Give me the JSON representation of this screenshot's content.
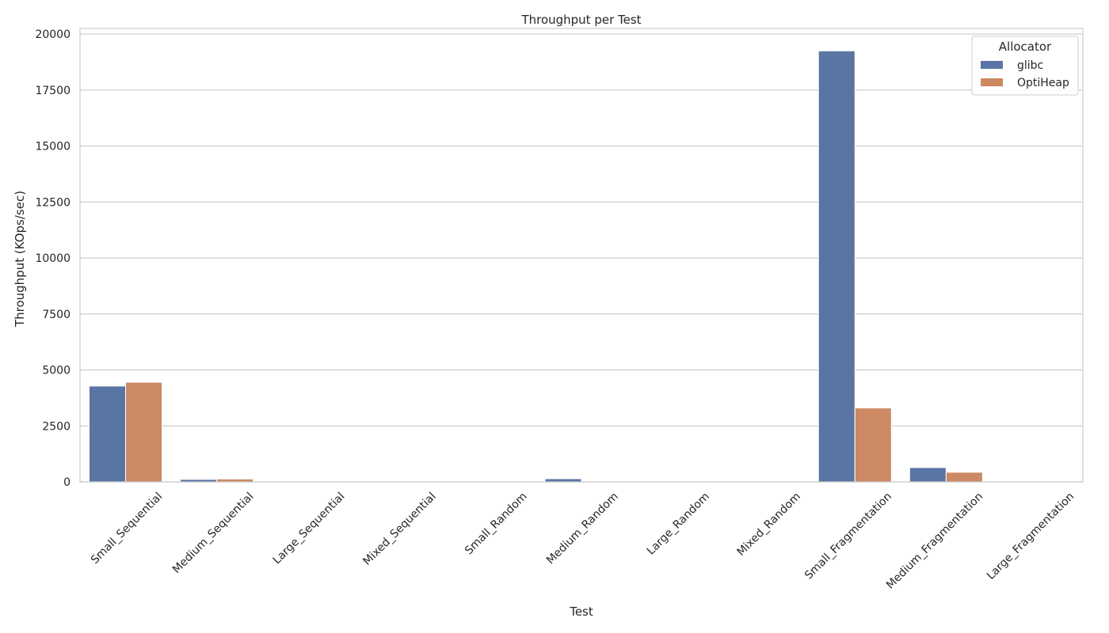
{
  "chart_data": {
    "type": "bar",
    "title": "Throughput per Test",
    "xlabel": "Test",
    "ylabel": "Throughput (KOps/sec)",
    "ylim": [
      0,
      20250
    ],
    "yticks": [
      0,
      2500,
      5000,
      7500,
      10000,
      12500,
      15000,
      17500,
      20000
    ],
    "grid": "horizontal",
    "legend_position": "top-right",
    "legend_title": "Allocator",
    "categories": [
      "Small_Sequential",
      "Medium_Sequential",
      "Large_Sequential",
      "Mixed_Sequential",
      "Small_Random",
      "Medium_Random",
      "Large_Random",
      "Mixed_Random",
      "Small_Fragmentation",
      "Medium_Fragmentation",
      "Large_Fragmentation"
    ],
    "series": [
      {
        "name": "glibc",
        "color": "#5975a4",
        "values": [
          4280,
          110,
          8,
          6,
          25,
          140,
          5,
          5,
          19250,
          640,
          8
        ]
      },
      {
        "name": "OptiHeap",
        "color": "#cc8963",
        "values": [
          4450,
          130,
          6,
          5,
          20,
          12,
          4,
          4,
          3300,
          430,
          6
        ]
      }
    ]
  }
}
